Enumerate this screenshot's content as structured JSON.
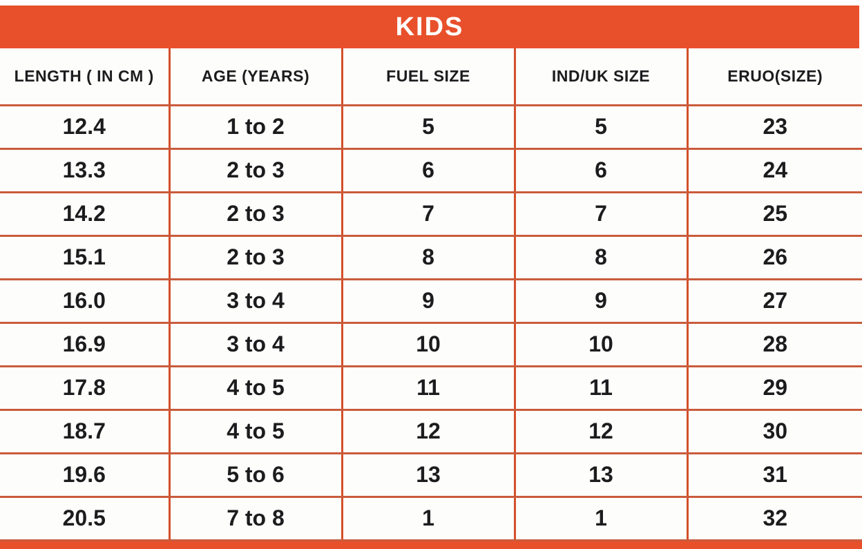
{
  "title": "KIDS",
  "colors": {
    "band": "#e8502b",
    "vline": "#d44f2a",
    "hline": "#c95b3c",
    "text": "#1c1c1e",
    "cell_bg": "#fdfdfb",
    "title_text": "#ffffff"
  },
  "chart_data": {
    "type": "table",
    "title": "KIDS",
    "columns": [
      "LENGTH ( IN CM )",
      "AGE (YEARS)",
      "FUEL SIZE",
      "IND/UK SIZE",
      "ERUO(SIZE)"
    ],
    "rows": [
      [
        "12.4",
        "1 to 2",
        "5",
        "5",
        "23"
      ],
      [
        "13.3",
        "2 to 3",
        "6",
        "6",
        "24"
      ],
      [
        "14.2",
        "2 to 3",
        "7",
        "7",
        "25"
      ],
      [
        "15.1",
        "2 to 3",
        "8",
        "8",
        "26"
      ],
      [
        "16.0",
        "3 to 4",
        "9",
        "9",
        "27"
      ],
      [
        "16.9",
        "3 to 4",
        "10",
        "10",
        "28"
      ],
      [
        "17.8",
        "4 to 5",
        "11",
        "11",
        "29"
      ],
      [
        "18.7",
        "4 to 5",
        "12",
        "12",
        "30"
      ],
      [
        "19.6",
        "5 to 6",
        "13",
        "13",
        "31"
      ],
      [
        "20.5",
        "7 to 8",
        "1",
        "1",
        "32"
      ]
    ]
  }
}
